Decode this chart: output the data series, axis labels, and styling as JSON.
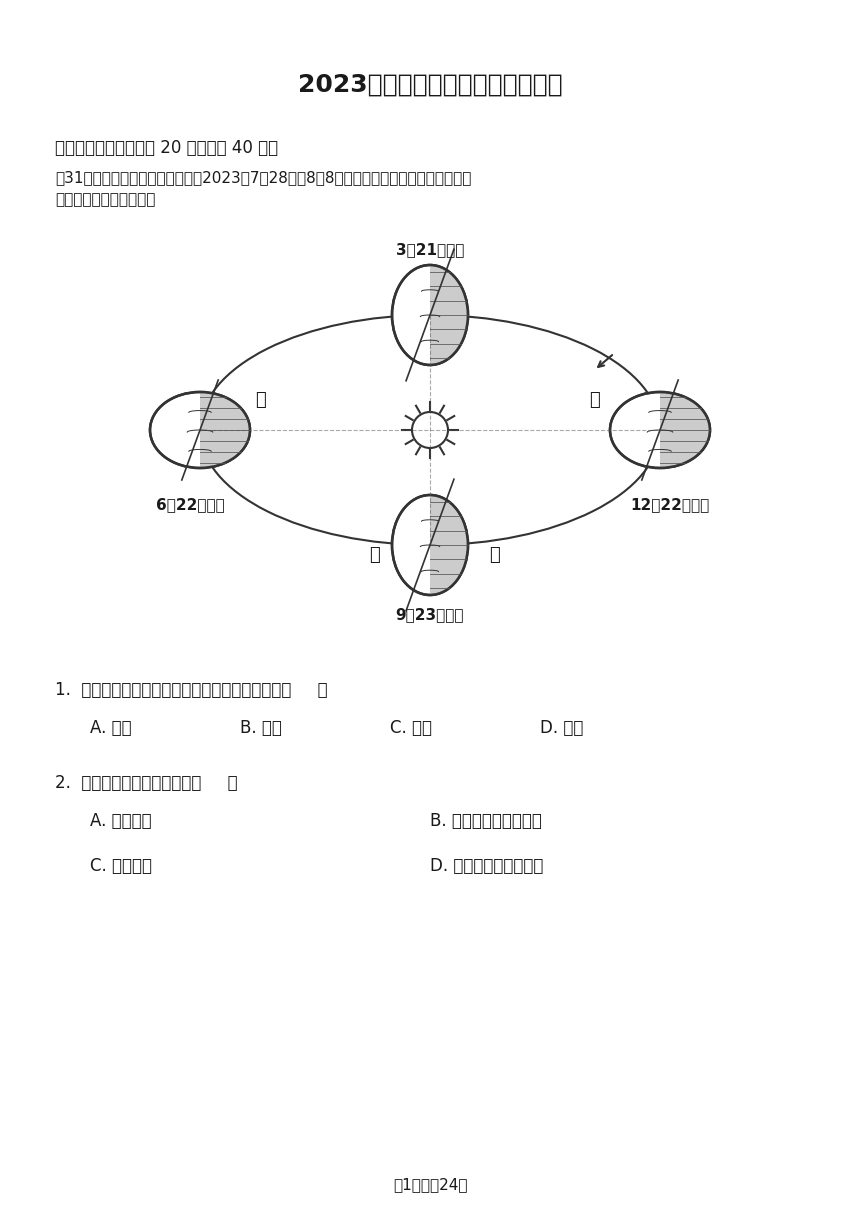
{
  "title": "2023年四川省甘孜州中考地理试卷",
  "section_header": "一、单选题（本大题共 20 小题，共 40 分）",
  "intro_text": "第31届世界大学生夏季运动会将于2023年7月28日至8月8日在成都举办，如图是地球公转示意图，据此完成各小题。",
  "date_top": "3月21日前后",
  "date_left": "6月22日前后",
  "date_right": "12月22日前后",
  "date_bottom": "9月23日前后",
  "label_jia": "甲",
  "label_yi": "乙",
  "label_bing": "丙",
  "label_ding": "丁",
  "q1_text": "1.  该运动会举办期间，地球运动到公转轨道上的（     ）",
  "q1_A": "A. 甲段",
  "q1_B": "B. 乙段",
  "q1_C": "C. 丙段",
  "q1_D": "D. 丁段",
  "q2_text": "2.  该运动会举办期间，成都（     ）",
  "q2_A": "A. 正值秋季",
  "q2_B": "B. 影子达到一年中最长",
  "q2_C": "C. 昼长夜短",
  "q2_D": "D. 昼长达到一年中最长",
  "footer": "第1页，共24页",
  "bg_color": "#ffffff",
  "text_color": "#1a1a1a"
}
